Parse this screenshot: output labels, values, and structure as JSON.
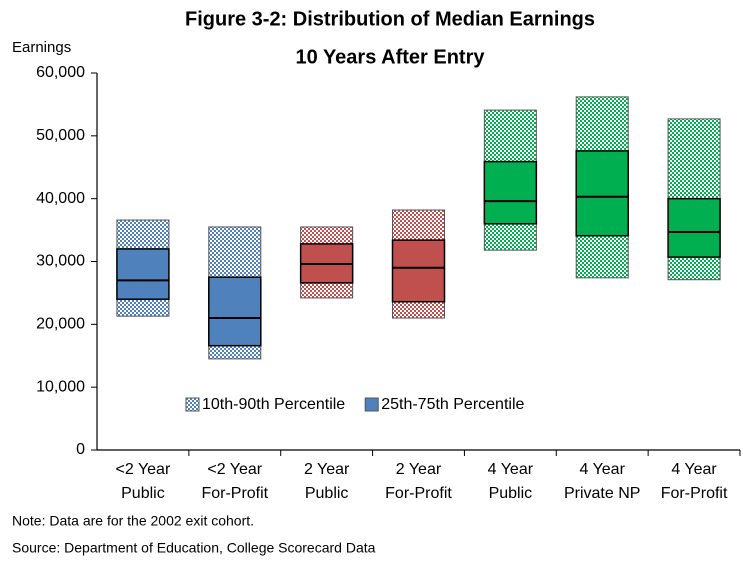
{
  "chart_data": {
    "type": "range_bar",
    "title": [
      "Figure 3-2: Distribution of Median Earnings",
      "10 Years After Entry"
    ],
    "y_label": "Earnings",
    "categories": [
      [
        "<2 Year",
        "Public"
      ],
      [
        "<2 Year",
        "For-Profit"
      ],
      [
        "2 Year",
        "Public"
      ],
      [
        "2 Year",
        "For-Profit"
      ],
      [
        "4 Year",
        "Public"
      ],
      [
        "4 Year",
        "Private NP"
      ],
      [
        "4 Year",
        "For-Profit"
      ]
    ],
    "colors": [
      "#4f81bd",
      "#4f81bd",
      "#c0504d",
      "#c0504d",
      "#00b050",
      "#00b050",
      "#00b050"
    ],
    "p10": [
      21300,
      14500,
      24200,
      21000,
      31800,
      27400,
      27100
    ],
    "p25": [
      24000,
      16600,
      26600,
      23600,
      36000,
      34100,
      30700
    ],
    "median": [
      27000,
      21000,
      29600,
      29000,
      39600,
      40300,
      34700
    ],
    "p75": [
      32000,
      27500,
      32800,
      33400,
      45900,
      47600,
      40000
    ],
    "p90": [
      36600,
      35500,
      35500,
      38200,
      54100,
      56200,
      52700
    ],
    "legend": [
      {
        "name": "10th-90th Percentile",
        "color": "#4f81bd",
        "style": "hatched"
      },
      {
        "name": "25th-75th Percentile",
        "color": "#4f81bd",
        "style": "solid"
      }
    ],
    "ylim": [
      0,
      60000
    ],
    "yticks": [
      0,
      {
        "value": 10000,
        "label": "10,000"
      },
      {
        "value": 20000,
        "label": "20,000"
      },
      {
        "value": 30000,
        "label": "30,000"
      },
      {
        "value": 40000,
        "label": "40,000"
      },
      {
        "value": 50000,
        "label": "50,000"
      },
      {
        "value": 60000,
        "label": "60,000"
      }
    ],
    "notes": [
      "Note: Data are for the 2002 exit cohort.",
      "Source: Department of Education, College Scorecard Data"
    ]
  }
}
